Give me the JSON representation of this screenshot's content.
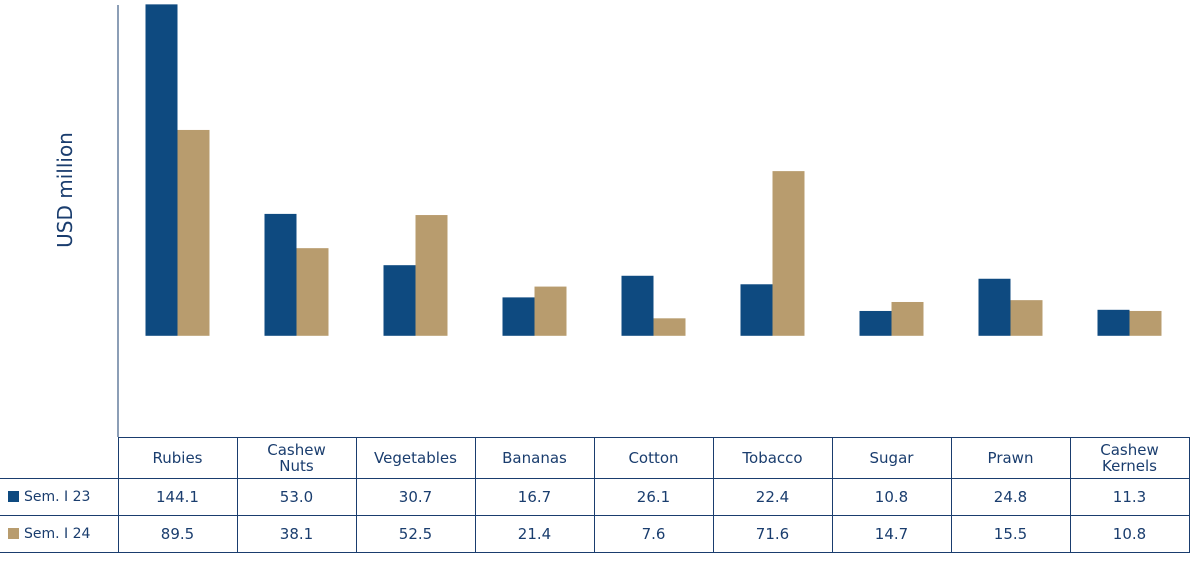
{
  "chart_data": {
    "type": "bar",
    "y_label": "USD million",
    "categories": [
      "Rubies",
      "Cashew Nuts",
      "Vegetables",
      "Bananas",
      "Cotton",
      "Tobacco",
      "Sugar",
      "Prawn",
      "Cashew Kernels"
    ],
    "series": [
      {
        "name": "Sem. I 23",
        "color": "#0e4a80",
        "values": [
          144.1,
          53.0,
          30.7,
          16.7,
          26.1,
          22.4,
          10.8,
          24.8,
          11.3
        ],
        "value_labels": [
          "144.1",
          "53.0",
          "30.7",
          "16.7",
          "26.1",
          "22.4",
          "10.8",
          "24.8",
          "11.3"
        ]
      },
      {
        "name": "Sem. I 24",
        "color": "#b89c6e",
        "values": [
          89.5,
          38.1,
          52.5,
          21.4,
          7.6,
          71.6,
          14.7,
          15.5,
          10.8
        ],
        "value_labels": [
          "89.5",
          "38.1",
          "52.5",
          "21.4",
          "7.6",
          "71.6",
          "14.7",
          "15.5",
          "10.8"
        ]
      }
    ],
    "ylim": [
      -44,
      146
    ]
  }
}
